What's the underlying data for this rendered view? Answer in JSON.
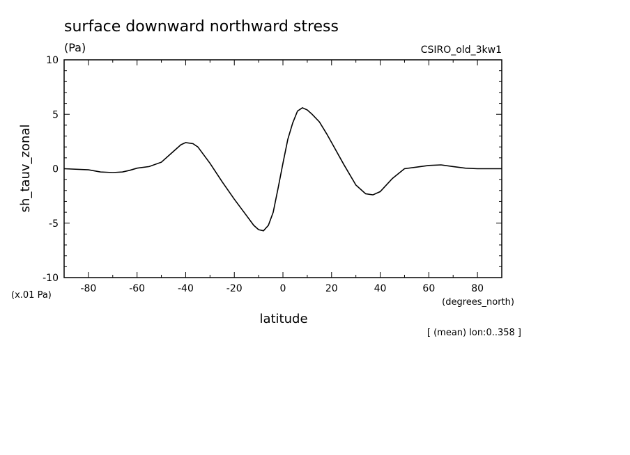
{
  "chart_data": {
    "type": "line",
    "title": "surface downward northward stress",
    "units_label": "(Pa)",
    "model_label": "CSIRO_old_3kw1",
    "ylabel": "sh_tauv_zonal",
    "xlabel": "latitude",
    "x_units_label": "(degrees_north)",
    "y_scale_label": "(x.01 Pa)",
    "footnote": "[ (mean) lon:0..358 ]",
    "xlim": [
      -90,
      90
    ],
    "ylim": [
      -10,
      10
    ],
    "x_ticks": [
      -80,
      -60,
      -40,
      -20,
      0,
      20,
      40,
      60,
      80
    ],
    "y_ticks": [
      -10,
      -5,
      0,
      5,
      10
    ],
    "x_tick_labels": [
      "-80",
      "-60",
      "-40",
      "-20",
      "0",
      "20",
      "40",
      "60",
      "80"
    ],
    "y_tick_labels": [
      "-10",
      "-5",
      "0",
      "5",
      "10"
    ],
    "grid": false,
    "line_color": "#000000",
    "series": [
      {
        "x": [
          -90,
          -80,
          -75,
          -70,
          -66,
          -63,
          -60,
          -55,
          -50,
          -45,
          -42,
          -40,
          -37,
          -35,
          -30,
          -25,
          -20,
          -15,
          -12,
          -10,
          -8,
          -6,
          -4,
          -2,
          0,
          2,
          4,
          6,
          8,
          10,
          12,
          15,
          18,
          20,
          25,
          30,
          34,
          37,
          40,
          45,
          50,
          55,
          60,
          65,
          70,
          75,
          80,
          85,
          90
        ],
        "y": [
          0.0,
          -0.1,
          -0.3,
          -0.35,
          -0.3,
          -0.15,
          0.05,
          0.2,
          0.6,
          1.6,
          2.2,
          2.4,
          2.3,
          2.0,
          0.5,
          -1.2,
          -2.8,
          -4.3,
          -5.2,
          -5.6,
          -5.7,
          -5.2,
          -4.0,
          -1.8,
          0.5,
          2.7,
          4.2,
          5.3,
          5.6,
          5.4,
          5.0,
          4.3,
          3.2,
          2.4,
          0.4,
          -1.5,
          -2.3,
          -2.4,
          -2.1,
          -0.9,
          0.0,
          0.15,
          0.3,
          0.35,
          0.2,
          0.05,
          0.0,
          0.0,
          0.0
        ]
      }
    ]
  }
}
